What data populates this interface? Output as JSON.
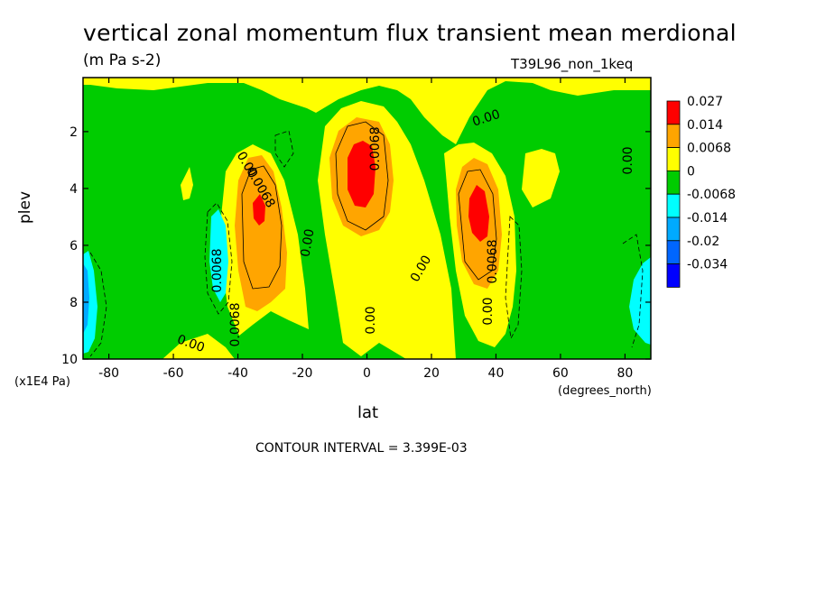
{
  "chart_data": {
    "type": "heatmap",
    "title": "vertical zonal momentum flux transient mean merdional",
    "units": "(m Pa s-2)",
    "run_label": "T39L96_non_1keq",
    "xlabel": "lat",
    "x_units": "(degrees_north)",
    "ylabel": "plev",
    "y_units": "(x1E4 Pa)",
    "xlim": [
      -88,
      88
    ],
    "ylim": [
      10,
      0.1
    ],
    "x_ticks": [
      -80,
      -60,
      -40,
      -20,
      0,
      20,
      40,
      60,
      80
    ],
    "x_tick_labels": [
      "-80",
      "-60",
      "-40",
      "-20",
      "0",
      "20",
      "40",
      "60",
      "80"
    ],
    "y_ticks": [
      2,
      4,
      6,
      8,
      10
    ],
    "y_tick_labels": [
      "2",
      "4",
      "6",
      "8",
      "10"
    ],
    "contour_interval": "CONTOUR INTERVAL = 3.399E-03",
    "legend": [
      {
        "label": "0.027",
        "color": "#ff0000"
      },
      {
        "label": "0.014",
        "color": "#ffa500"
      },
      {
        "label": "0.0068",
        "color": "#ffff00"
      },
      {
        "label": "0",
        "color": "#00cc00"
      },
      {
        "label": "-0.0068",
        "color": "#00ffff"
      },
      {
        "label": "-0.014",
        "color": "#00aaff"
      },
      {
        "label": "-0.02",
        "color": "#0066ff"
      },
      {
        "label": "-0.034",
        "color": "#0000ff"
      }
    ],
    "contour_labels": [
      "0.00",
      "0.00",
      "0.00",
      "0.00",
      "0.00",
      "0.00",
      "0.00",
      "0.00",
      "0.0068",
      "0.0068",
      "0.0068",
      "0.0068",
      "0.0068"
    ],
    "features": [
      {
        "lat": -35,
        "plev": 5.0,
        "sign": "positive",
        "peak_level": "0.027"
      },
      {
        "lat": -3,
        "plev": 3.5,
        "sign": "positive",
        "peak_level": "0.027"
      },
      {
        "lat": 35,
        "plev": 4.8,
        "sign": "positive",
        "peak_level": "0.027"
      },
      {
        "lat": -85,
        "plev": 8.0,
        "sign": "negative",
        "peak_level": "-0.02"
      },
      {
        "lat": 85,
        "plev": 7.5,
        "sign": "negative",
        "peak_level": "-0.014"
      },
      {
        "lat": -45,
        "plev": 6.5,
        "sign": "negative",
        "peak_level": "-0.014"
      }
    ]
  }
}
